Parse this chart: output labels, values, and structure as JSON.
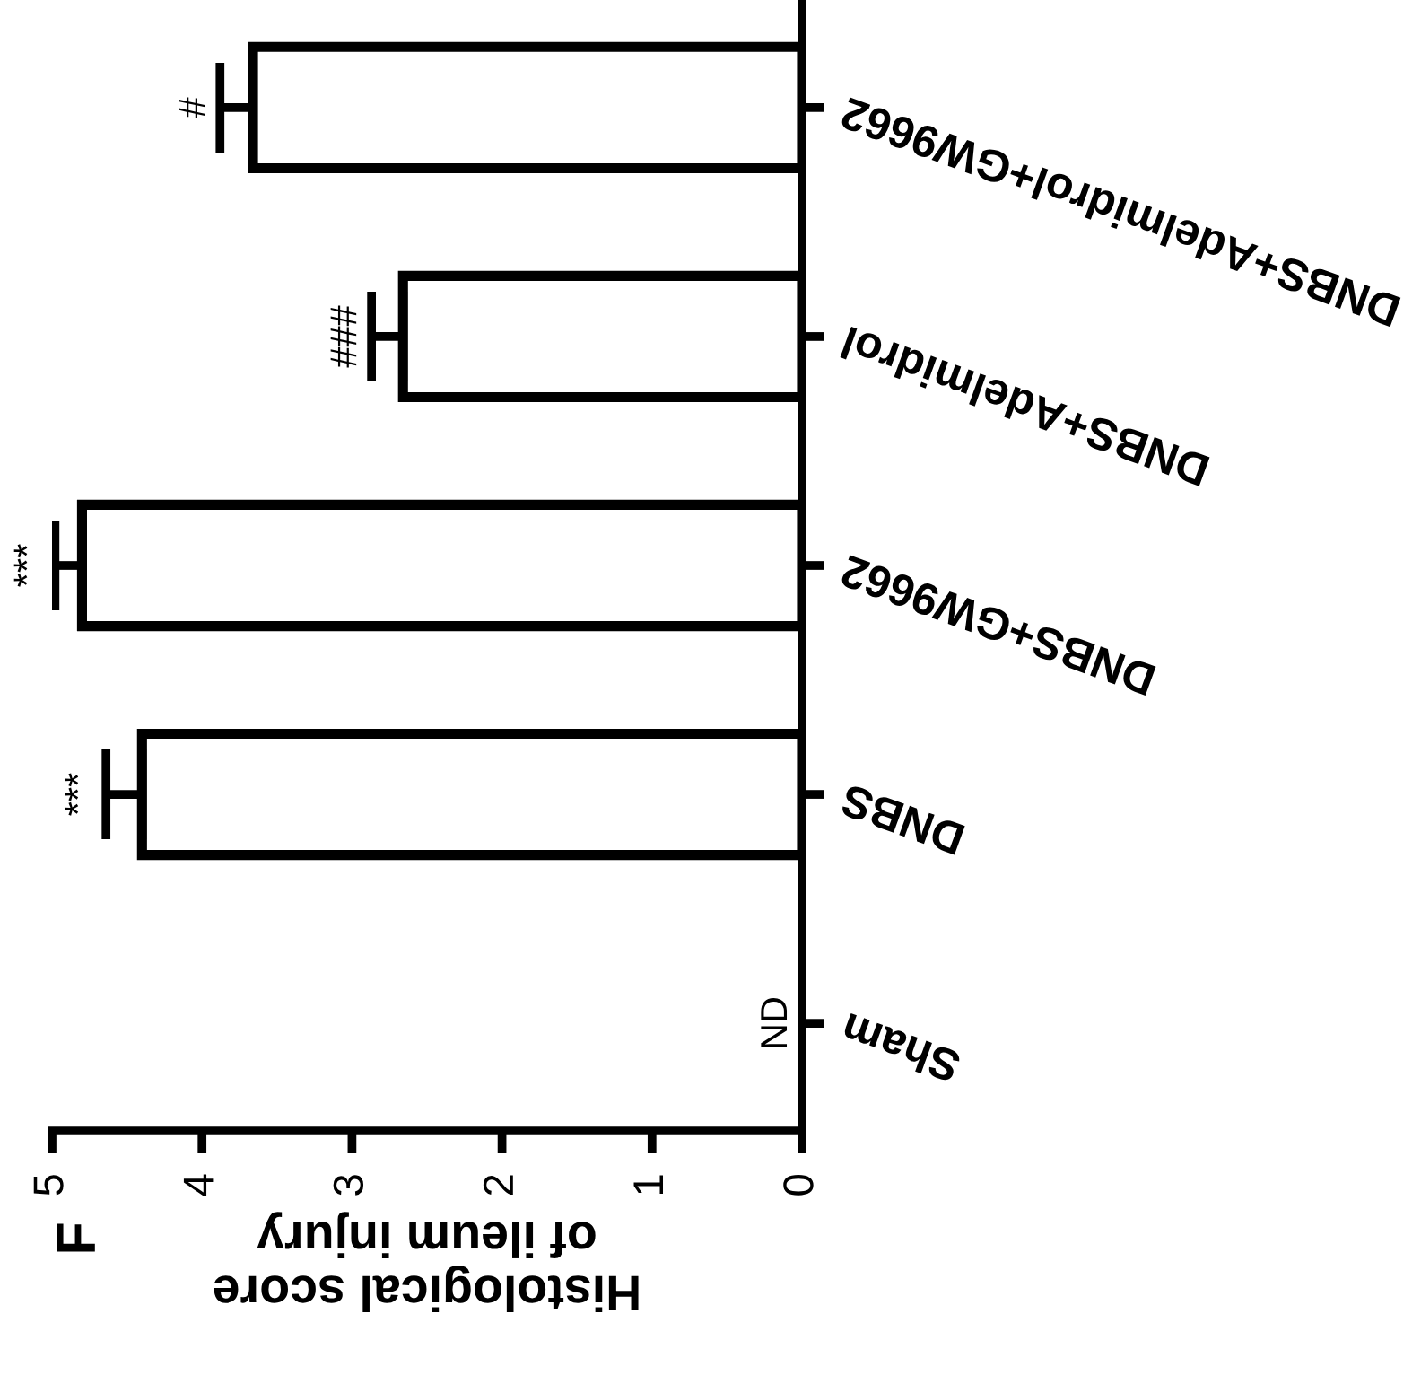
{
  "chart_data": {
    "type": "bar",
    "orientation": "horizontal",
    "xlabel": "Histological score\nof ileum injury",
    "categories": [
      "DNBS+Adelmidrol+GW9662",
      "DNBS+Adelmidrol",
      "DNBS+GW9662",
      "DNBS",
      "Sham"
    ],
    "values": [
      3.66,
      2.66,
      4.8,
      4.4,
      0
    ],
    "errors": [
      0.22,
      0.21,
      0.18,
      0.24,
      null
    ],
    "color": "#ffffff",
    "xlim": [
      5,
      0
    ],
    "xticks": [
      5,
      4,
      3,
      2,
      1,
      0
    ],
    "grid": false,
    "legend": false,
    "annotations": [
      "#",
      "###",
      "***",
      "***",
      "ND",
      "F"
    ]
  }
}
